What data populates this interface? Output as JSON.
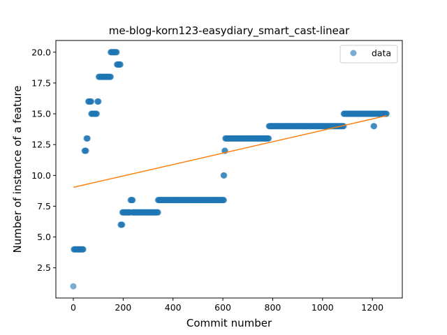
{
  "chart_data": {
    "type": "scatter",
    "title": "me-blog-korn123-easydiary_smart_cast-linear",
    "xlabel": "Commit number",
    "ylabel": "Number of instance of a feature",
    "xlim": [
      -70,
      1320
    ],
    "ylim": [
      0.05,
      20.95
    ],
    "xticks": [
      0,
      200,
      400,
      600,
      800,
      1000,
      1200
    ],
    "xtick_labels": [
      "0",
      "200",
      "400",
      "600",
      "800",
      "1000",
      "1200"
    ],
    "yticks": [
      2.5,
      5.0,
      7.5,
      10.0,
      12.5,
      15.0,
      17.5,
      20.0
    ],
    "ytick_labels": [
      "2.5",
      "5.0",
      "7.5",
      "10.0",
      "12.5",
      "15.0",
      "17.5",
      "20.0"
    ],
    "grid": false,
    "legend_position": "top-right",
    "colors": {
      "data": "#1f77b4",
      "fit": "#ff7f0e"
    },
    "series": [
      {
        "name": "data",
        "kind": "points",
        "segments": [
          {
            "x_start": 0,
            "x_end": 0,
            "y": 1
          },
          {
            "x_start": 2,
            "x_end": 40,
            "y": 4
          },
          {
            "x_start": 45,
            "x_end": 52,
            "y": 12
          },
          {
            "x_start": 53,
            "x_end": 58,
            "y": 13
          },
          {
            "x_start": 60,
            "x_end": 72,
            "y": 16
          },
          {
            "x_start": 72,
            "x_end": 95,
            "y": 15
          },
          {
            "x_start": 97,
            "x_end": 102,
            "y": 16
          },
          {
            "x_start": 102,
            "x_end": 150,
            "y": 18
          },
          {
            "x_start": 150,
            "x_end": 175,
            "y": 20
          },
          {
            "x_start": 175,
            "x_end": 190,
            "y": 19
          },
          {
            "x_start": 190,
            "x_end": 197,
            "y": 6
          },
          {
            "x_start": 197,
            "x_end": 230,
            "y": 7
          },
          {
            "x_start": 230,
            "x_end": 238,
            "y": 8
          },
          {
            "x_start": 238,
            "x_end": 340,
            "y": 7
          },
          {
            "x_start": 340,
            "x_end": 605,
            "y": 8
          },
          {
            "x_start": 603,
            "x_end": 606,
            "y": 10
          },
          {
            "x_start": 607,
            "x_end": 610,
            "y": 12
          },
          {
            "x_start": 610,
            "x_end": 785,
            "y": 13
          },
          {
            "x_start": 785,
            "x_end": 1085,
            "y": 14
          },
          {
            "x_start": 1085,
            "x_end": 1258,
            "y": 15
          },
          {
            "x_start": 1205,
            "x_end": 1208,
            "y": 14
          }
        ]
      },
      {
        "name": "",
        "kind": "line",
        "points": [
          [
            0,
            9.03
          ],
          [
            1258,
            14.85
          ]
        ]
      }
    ],
    "legend": [
      "data"
    ]
  }
}
